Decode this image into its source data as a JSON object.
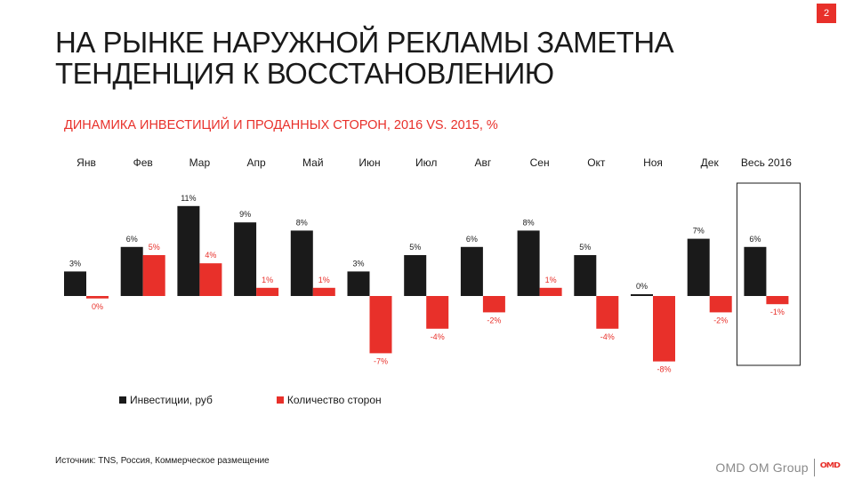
{
  "page_number": "2",
  "title_lines": [
    "НА РЫНКЕ НАРУЖНОЙ РЕКЛАМЫ ЗАМЕТНА",
    "ТЕНДЕНЦИЯ К ВОССТАНОВЛЕНИЮ"
  ],
  "subtitle": "ДИНАМИКА ИНВЕСТИЦИЙ И ПРОДАННЫХ СТОРОН, 2016 VS. 2015, %",
  "source": "Источник: TNS, Россия, Коммерческое размещение",
  "footer": {
    "brand": "OMD OM Group",
    "logo": "OMD"
  },
  "colors": {
    "investments": "#1a1a1a",
    "sides": "#e8302a",
    "accent": "#e8302a"
  },
  "chart_data": {
    "type": "bar",
    "categories": [
      "Янв",
      "Фев",
      "Мар",
      "Апр",
      "Май",
      "Июн",
      "Июл",
      "Авг",
      "Сен",
      "Окт",
      "Ноя",
      "Дек",
      "Весь 2016"
    ],
    "series": [
      {
        "name": "Инвестиции,  руб",
        "values": [
          3,
          6,
          11,
          9,
          8,
          3,
          5,
          6,
          8,
          5,
          0,
          7,
          6
        ],
        "labels": [
          "3%",
          "6%",
          "11%",
          "9%",
          "8%",
          "3%",
          "5%",
          "6%",
          "8%",
          "5%",
          "0%",
          "7%",
          "6%"
        ]
      },
      {
        "name": "Количество  сторон",
        "values": [
          -0.3,
          5,
          4,
          1,
          1,
          -7,
          -4,
          -2,
          1,
          -4,
          -8,
          -2,
          -1
        ],
        "labels": [
          "0%",
          "5%",
          "4%",
          "1%",
          "1%",
          "-7%",
          "-4%",
          "-2%",
          "1%",
          "-4%",
          "-8%",
          "-2%",
          "-1%"
        ]
      }
    ],
    "highlighted_category": "Весь 2016",
    "legend_position": "bottom-left",
    "grid": false
  }
}
